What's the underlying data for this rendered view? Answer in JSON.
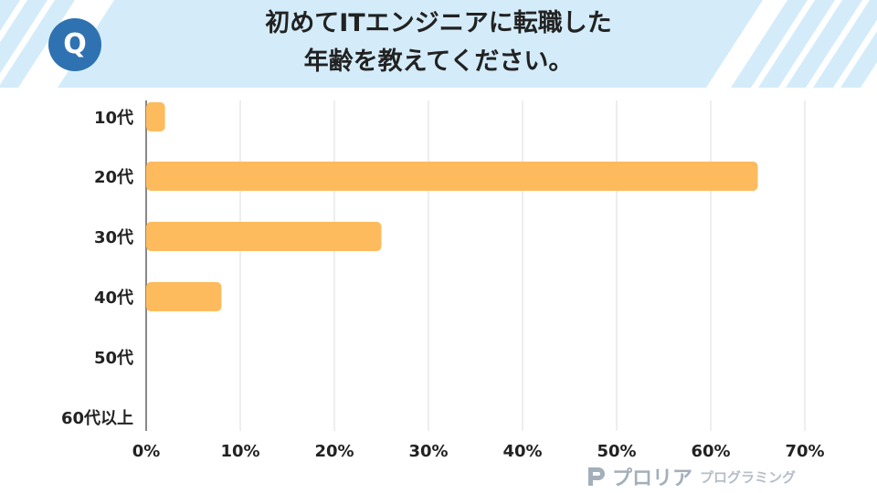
{
  "question": {
    "badge": "Q",
    "title_lines": [
      "初めてITエンジニアに転職した",
      "年齢を教えてください。"
    ]
  },
  "brand": {
    "name": "プロリア",
    "sub": "プログラミング"
  },
  "colors": {
    "bar": "#fdbb5e",
    "badge": "#2f72b1",
    "stripe": "#d4ecf9",
    "grid": "#e3e3e3"
  },
  "chart_data": {
    "type": "bar",
    "orientation": "horizontal",
    "categories": [
      "10代",
      "20代",
      "30代",
      "40代",
      "50代",
      "60代以上"
    ],
    "values": [
      2,
      65,
      25,
      8,
      0,
      0
    ],
    "x_ticks": [
      "0%",
      "10%",
      "20%",
      "30%",
      "40%",
      "50%",
      "60%",
      "70%"
    ],
    "xlim": [
      0,
      70
    ],
    "grid": true,
    "legend": "none"
  }
}
